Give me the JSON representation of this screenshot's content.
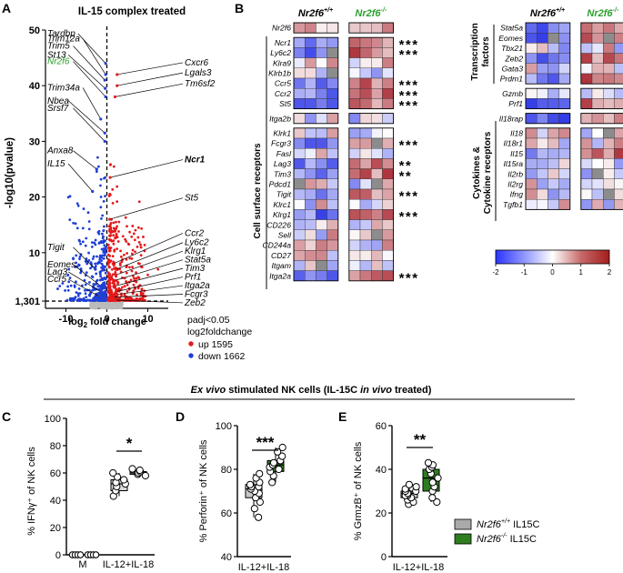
{
  "panels": {
    "A": {
      "letter": "A",
      "title": "IL-15 complex treated",
      "ylabel": "-log10(pvalue)",
      "xlabel_pre": "log",
      "xlabel_sub": "2",
      "xlabel_post": " fold change",
      "yticks": [
        "50",
        "40",
        "30",
        "20",
        "10",
        "1,301"
      ],
      "xticks": [
        "-10",
        "0",
        "10"
      ],
      "left_labels": [
        "Tardbp",
        "Trim12a",
        "Trim5",
        "St13",
        "Nr2f6",
        "Trim34a",
        "Nbea",
        "Srsf7",
        "Anxa8",
        "IL15",
        "Tigit",
        "Eomes",
        "Lag3",
        "Ccr5"
      ],
      "right_labels": [
        "Cxcr6",
        "Lgals3",
        "Tm6sf2",
        "Ncr1",
        "St5",
        "Ccr2",
        "Ly6c2",
        "Klrg1",
        "Stat5a",
        "Tim3",
        "Prf1",
        "Itga2a",
        "Fcgr3",
        "Zeb2"
      ],
      "legend": {
        "line1": "padj<0.05",
        "line2": "log2foldchange",
        "up": "up 1595",
        "down": "down 1662",
        "up_color": "#e41a1c",
        "down_color": "#1f3fd6"
      }
    },
    "B": {
      "letter": "B",
      "group1": "Nr2f6",
      "group1_sup": "+/+",
      "group2": "Nr2f6",
      "group2_sup": "-/-",
      "group2_color": "#2ca02c",
      "left_genes": [
        "Nr2f6",
        "Ncr1",
        "Ly6c2",
        "Klra9",
        "Klrb1b",
        "Ccr5",
        "Ccr2",
        "St5",
        "Itga2b",
        "Klrk1",
        "Fcgr3",
        "Fasl",
        "Lag3",
        "Tim3",
        "Pdcd1",
        "Tigit",
        "Klrc1",
        "Klrg1",
        "CD226",
        "Sell",
        "CD244a",
        "CD27",
        "Itgam",
        "Itga2a"
      ],
      "left_stars": [
        "",
        "***",
        "***",
        "",
        "",
        "***",
        "***",
        "***",
        "",
        "",
        "***",
        "",
        "**",
        "**",
        "",
        "***",
        "",
        "***",
        "",
        "",
        "",
        "",
        "",
        "***"
      ],
      "right_genes": [
        "Stat5a",
        "Eomes",
        "Tbx21",
        "Zeb2",
        "Gata3",
        "Prdm1",
        "Gzmb",
        "Prf1",
        "Il18rap",
        "Il18",
        "Il18r1",
        "Il15",
        "Il15ra",
        "Il2rb",
        "Il2rg",
        "Ifng",
        "Tgfb1"
      ],
      "right_stars": [
        "***",
        "***",
        "",
        "**",
        "",
        "***",
        "",
        "***",
        "***",
        "",
        "",
        "***",
        "",
        "",
        "",
        "",
        ""
      ],
      "left_side_label": "Cell surface receptors",
      "right_side_label1": "Transcription",
      "right_side_label2": "factors",
      "right_side_label3": "Cytokines &",
      "right_side_label4": "Cytokine receptors",
      "colorbar_ticks": [
        "-2",
        "-1",
        "0",
        "1",
        "2"
      ]
    },
    "C": {
      "letter": "C",
      "ylabel": "% IFNγ⁺ of NK cells",
      "yticks": [
        "100",
        "80",
        "60",
        "40",
        "20",
        "0"
      ],
      "xcats": [
        "M",
        "IL-12+IL-18"
      ],
      "sig": "*"
    },
    "D": {
      "letter": "D",
      "ylabel": "% Perforin⁺ of NK cells",
      "yticks": [
        "100",
        "80",
        "60",
        "40"
      ],
      "xcat": "IL-12+IL-18",
      "sig": "***"
    },
    "E": {
      "letter": "E",
      "ylabel": "% GrmzB⁺ of NK cells",
      "yticks": [
        "60",
        "40",
        "20",
        "0"
      ],
      "xcat": "IL-12+IL-18",
      "sig": "**",
      "legend": [
        {
          "name": "Nr2f6",
          "sup": "+/+",
          "suffix": " IL15C",
          "color": "#aaaaaa"
        },
        {
          "name": "Nr2f6",
          "sup": "-/-",
          "suffix": " IL15C",
          "color": "#2e7d1e"
        }
      ]
    }
  },
  "section_title_italic": "Ex vivo",
  "section_title_rest": " stimulated NK cells (IL-15C ",
  "section_title_italic2": "in vivo",
  "section_title_end": " treated)",
  "chart_data": [
    {
      "type": "scatter",
      "xlabel": "log2 fold change",
      "ylabel": "-log10(pvalue)",
      "xlim": [
        -15,
        15
      ],
      "ylim": [
        0,
        50
      ],
      "series": [
        {
          "name": "up 1595",
          "color": "#e41a1c"
        },
        {
          "name": "down 1662",
          "color": "#1f3fd6"
        }
      ],
      "labeled_points": [
        {
          "gene": "Tardbp",
          "x": -0.3,
          "y": 44
        },
        {
          "gene": "Trim12a",
          "x": -0.3,
          "y": 42
        },
        {
          "gene": "Trim5",
          "x": -0.5,
          "y": 41
        },
        {
          "gene": "St13",
          "x": -0.4,
          "y": 39.5
        },
        {
          "gene": "Nr2f6",
          "x": -0.3,
          "y": 38
        },
        {
          "gene": "Trim34a",
          "x": -1.5,
          "y": 34
        },
        {
          "gene": "Nbea",
          "x": -0.5,
          "y": 31.5
        },
        {
          "gene": "Srsf7",
          "x": -0.5,
          "y": 30
        },
        {
          "gene": "Anxa8",
          "x": -2.5,
          "y": 25
        },
        {
          "gene": "IL15",
          "x": -3.5,
          "y": 21
        },
        {
          "gene": "Tigit",
          "x": -2.8,
          "y": 7
        },
        {
          "gene": "Eomes",
          "x": -1.5,
          "y": 4
        },
        {
          "gene": "Lag3",
          "x": -1.5,
          "y": 3
        },
        {
          "gene": "Ccr5",
          "x": -1.5,
          "y": 2
        },
        {
          "gene": "Cxcr6",
          "x": 2.5,
          "y": 42
        },
        {
          "gene": "Lgals3",
          "x": 2.5,
          "y": 40
        },
        {
          "gene": "Tm6sf2",
          "x": 2.0,
          "y": 38
        },
        {
          "gene": "Ncr1",
          "x": 0.8,
          "y": 23.5
        },
        {
          "gene": "St5",
          "x": 0.7,
          "y": 16
        },
        {
          "gene": "Ccr2",
          "x": 1.5,
          "y": 8
        },
        {
          "gene": "Ly6c2",
          "x": 2.2,
          "y": 7
        },
        {
          "gene": "Klrg1",
          "x": 2.2,
          "y": 6
        },
        {
          "gene": "Stat5a",
          "x": 2.0,
          "y": 5
        },
        {
          "gene": "Tim3",
          "x": 2.0,
          "y": 4
        },
        {
          "gene": "Prf1",
          "x": 2.2,
          "y": 3
        },
        {
          "gene": "Itga2a",
          "x": 2.5,
          "y": 2.5
        },
        {
          "gene": "Fcgr3",
          "x": 1.5,
          "y": 2
        },
        {
          "gene": "Zeb2",
          "x": 2.0,
          "y": 1.5
        }
      ]
    },
    {
      "type": "scatter",
      "title": "",
      "ylabel": "% IFNγ⁺ of NK cells",
      "ylim": [
        0,
        100
      ],
      "categories": [
        "M",
        "IL-12+IL-18"
      ],
      "series": [
        {
          "name": "Nr2f6+/+ IL15C",
          "values_M": [
            0,
            0,
            0,
            0,
            0,
            0,
            0,
            0
          ],
          "values_IL": [
            43,
            47,
            50,
            52,
            53,
            55,
            57,
            60
          ]
        },
        {
          "name": "Nr2f6-/- IL15C",
          "values_M": [
            0,
            0,
            0,
            0,
            0,
            0,
            0,
            0
          ],
          "values_IL": [
            58,
            59,
            60,
            61,
            62,
            63
          ]
        }
      ]
    },
    {
      "type": "scatter",
      "ylabel": "% Perforin⁺ of NK cells",
      "ylim": [
        40,
        100
      ],
      "categories": [
        "IL-12+IL-18"
      ],
      "series": [
        {
          "name": "Nr2f6+/+ IL15C",
          "values": [
            58,
            62,
            65,
            67,
            69,
            70,
            71,
            72,
            72,
            73,
            74,
            76,
            78
          ]
        },
        {
          "name": "Nr2f6-/- IL15C",
          "values": [
            74,
            77,
            79,
            80,
            81,
            82,
            83,
            84,
            86,
            88,
            90
          ]
        }
      ]
    },
    {
      "type": "scatter",
      "ylabel": "% GrmzB⁺ of NK cells",
      "ylim": [
        0,
        60
      ],
      "categories": [
        "IL-12+IL-18"
      ],
      "series": [
        {
          "name": "Nr2f6+/+ IL15C",
          "values": [
            24,
            25,
            26,
            27,
            28,
            28,
            29,
            29,
            30,
            30,
            31,
            32,
            33
          ]
        },
        {
          "name": "Nr2f6-/- IL15C",
          "values": [
            25,
            27,
            30,
            32,
            34,
            36,
            38,
            40,
            41,
            42,
            43
          ]
        }
      ]
    }
  ]
}
